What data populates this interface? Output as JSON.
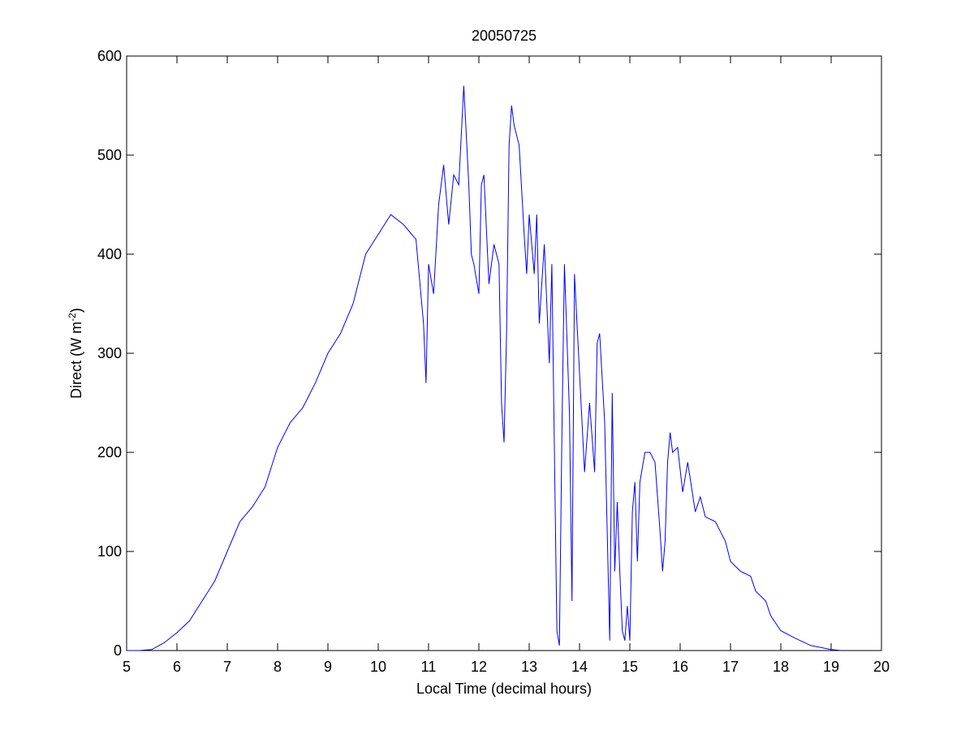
{
  "chart_data": {
    "type": "line",
    "title": "20050725",
    "x_label": "Local Time (decimal hours)",
    "y_label_parts": [
      "Direct (W m",
      "-2",
      ")"
    ],
    "xlim": [
      5,
      20
    ],
    "xticks": [
      5,
      6,
      7,
      8,
      9,
      10,
      11,
      12,
      13,
      14,
      15,
      16,
      17,
      18,
      19,
      20
    ],
    "ylim": [
      0,
      600
    ],
    "yticks": [
      0,
      100,
      200,
      300,
      400,
      500,
      600
    ],
    "grid": false,
    "series": [
      {
        "color": "#0000ff",
        "x": [
          5,
          5.25,
          5.5,
          5.75,
          6,
          6.25,
          6.5,
          6.75,
          7,
          7.25,
          7.5,
          7.75,
          8,
          8.25,
          8.5,
          8.75,
          9,
          9.25,
          9.5,
          9.75,
          10,
          10.25,
          10.5,
          10.75,
          10.9,
          10.95,
          11,
          11.1,
          11.2,
          11.3,
          11.4,
          11.5,
          11.6,
          11.7,
          11.8,
          11.85,
          11.9,
          12,
          12.05,
          12.1,
          12.2,
          12.3,
          12.4,
          12.45,
          12.5,
          12.55,
          12.6,
          12.65,
          12.7,
          12.8,
          12.9,
          12.95,
          13,
          13.1,
          13.15,
          13.2,
          13.3,
          13.4,
          13.45,
          13.55,
          13.6,
          13.65,
          13.7,
          13.8,
          13.85,
          13.9,
          14,
          14.1,
          14.2,
          14.3,
          14.35,
          14.4,
          14.5,
          14.55,
          14.6,
          14.65,
          14.7,
          14.75,
          14.8,
          14.85,
          14.9,
          14.95,
          15,
          15.05,
          15.1,
          15.15,
          15.2,
          15.3,
          15.4,
          15.5,
          15.6,
          15.65,
          15.7,
          15.75,
          15.8,
          15.85,
          15.95,
          16.05,
          16.15,
          16.3,
          16.4,
          16.5,
          16.7,
          16.9,
          17,
          17.2,
          17.4,
          17.5,
          17.7,
          17.8,
          18,
          18.3,
          18.6,
          19,
          19.2
        ],
        "values": [
          0,
          0,
          1,
          8,
          18,
          30,
          50,
          70,
          100,
          130,
          145,
          165,
          205,
          230,
          245,
          270,
          300,
          320,
          350,
          400,
          420,
          440,
          430,
          415,
          330,
          270,
          390,
          360,
          450,
          490,
          430,
          480,
          470,
          570,
          470,
          400,
          390,
          360,
          470,
          480,
          370,
          410,
          390,
          250,
          210,
          320,
          510,
          550,
          530,
          510,
          420,
          380,
          440,
          380,
          440,
          330,
          410,
          290,
          390,
          20,
          5,
          220,
          390,
          240,
          50,
          380,
          280,
          180,
          250,
          180,
          310,
          320,
          230,
          120,
          10,
          260,
          80,
          150,
          80,
          20,
          10,
          45,
          10,
          140,
          170,
          90,
          170,
          200,
          200,
          190,
          120,
          80,
          110,
          190,
          220,
          200,
          205,
          160,
          190,
          140,
          155,
          135,
          130,
          110,
          90,
          80,
          75,
          60,
          50,
          35,
          20,
          12,
          5,
          1,
          0
        ]
      }
    ]
  }
}
